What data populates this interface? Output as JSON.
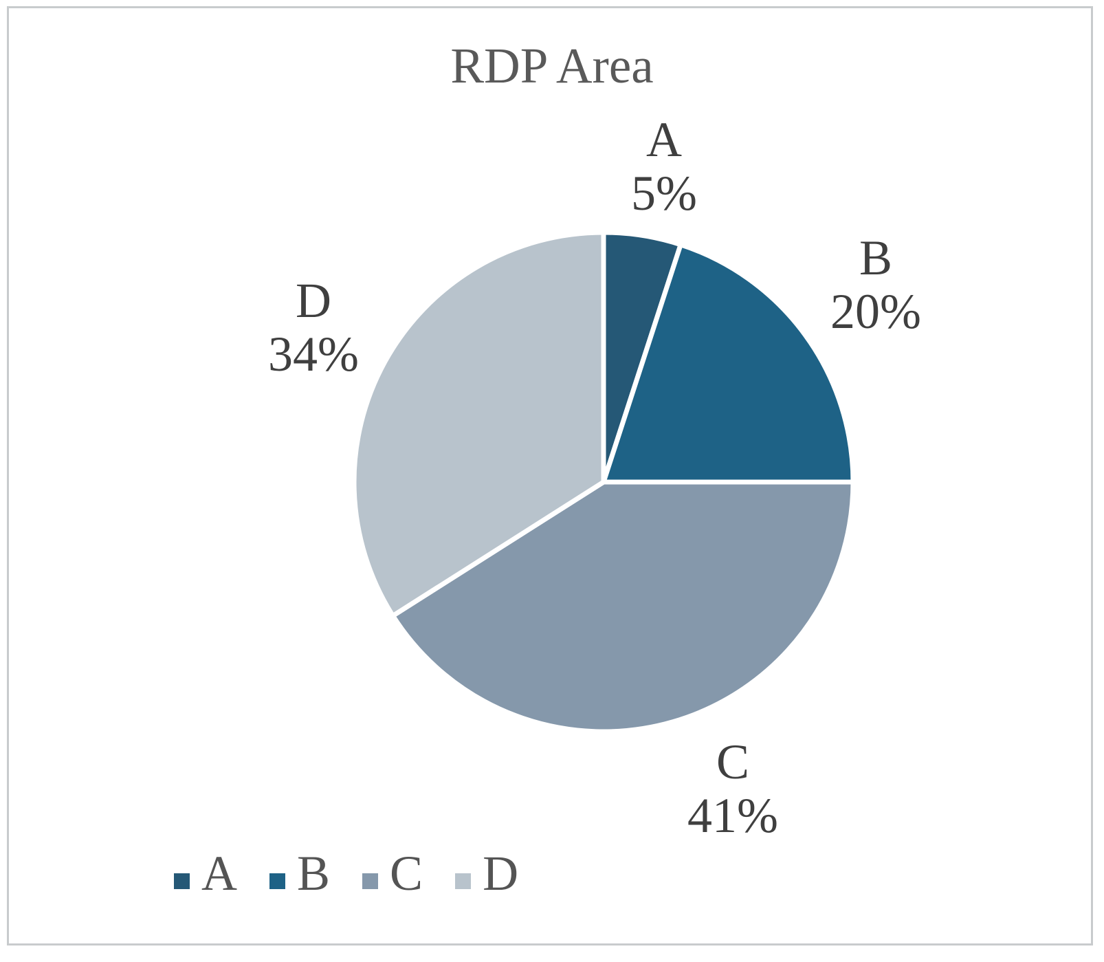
{
  "chart_data": {
    "type": "pie",
    "title": "RDP Area",
    "categories": [
      "A",
      "B",
      "C",
      "D"
    ],
    "values": [
      5,
      20,
      41,
      34
    ],
    "unit": "percent",
    "start_angle_deg": 0,
    "direction": "clockwise",
    "colors": [
      "#255876",
      "#1e6286",
      "#8598ab",
      "#b8c3cc"
    ],
    "separator_color": "#ffffff",
    "slice_labels": [
      {
        "cat": "A",
        "pct": "5%"
      },
      {
        "cat": "B",
        "pct": "20%"
      },
      {
        "cat": "C",
        "pct": "41%"
      },
      {
        "cat": "D",
        "pct": "34%"
      }
    ],
    "legend": {
      "position": "bottom",
      "entries": [
        "A",
        "B",
        "C",
        "D"
      ]
    },
    "title_color": "#595959",
    "label_color": "#3f3f3f",
    "frame_color": "#c8cbcd"
  }
}
